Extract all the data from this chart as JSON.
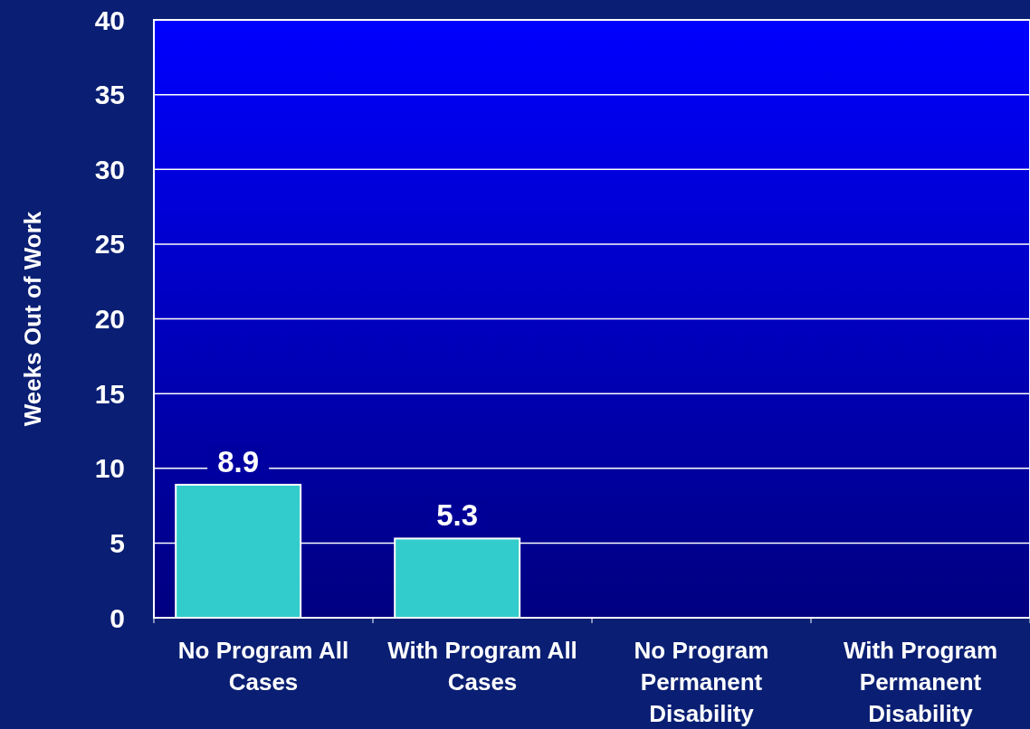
{
  "chart_data": {
    "type": "bar",
    "ylabel": "Weeks Out of Work",
    "categories": [
      "No Program All Cases",
      "With Program All Cases",
      "No Program Permanent Disability",
      "With Program Permanent Disability"
    ],
    "values": [
      8.9,
      5.3,
      null,
      null
    ],
    "color": "#33cccc",
    "ylim": [
      0,
      40
    ],
    "yticks": [
      0,
      5,
      10,
      15,
      20,
      25,
      30,
      35,
      40
    ],
    "grid": "y",
    "data_labels": true
  }
}
